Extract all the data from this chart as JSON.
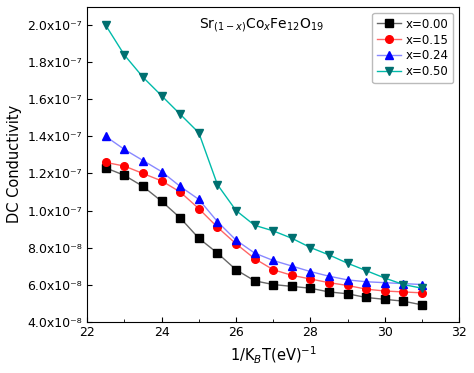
{
  "title": "Sr$_{(1-x)}$Co$_x$Fe$_{12}$O$_{19}$",
  "xlabel": "1/K$_{B}$T(eV)$^{-1}$",
  "ylabel": "DC Conductivity",
  "xlim": [
    22,
    32
  ],
  "ylim": [
    4e-08,
    2.1e-07
  ],
  "yticks": [
    4e-08,
    6e-08,
    8e-08,
    1e-07,
    1.2e-07,
    1.4e-07,
    1.6e-07,
    1.8e-07,
    2e-07
  ],
  "ytick_labels": [
    "4.0x10⁻⁸",
    "6.0x10⁻⁸",
    "8.0x10⁻⁸",
    "1.0x10⁻⁷",
    "1.2x10⁻⁷",
    "1.4x10⁻⁷",
    "1.6x10⁻⁷",
    "1.8x10⁻⁷",
    "2.0x10⁻⁷"
  ],
  "xticks": [
    22,
    24,
    26,
    28,
    30,
    32
  ],
  "series": [
    {
      "label": "x=0.00",
      "marker_color": "#000000",
      "line_color": "#666666",
      "marker": "s",
      "x": [
        22.5,
        23.0,
        23.5,
        24.0,
        24.5,
        25.0,
        25.5,
        26.0,
        26.5,
        27.0,
        27.5,
        28.0,
        28.5,
        29.0,
        29.5,
        30.0,
        30.5,
        31.0
      ],
      "y": [
        1.23e-07,
        1.19e-07,
        1.13e-07,
        1.05e-07,
        9.6e-08,
        8.5e-08,
        7.7e-08,
        6.8e-08,
        6.2e-08,
        6e-08,
        5.9e-08,
        5.8e-08,
        5.6e-08,
        5.5e-08,
        5.3e-08,
        5.2e-08,
        5.1e-08,
        4.9e-08
      ]
    },
    {
      "label": "x=0.15",
      "marker_color": "#ff0000",
      "line_color": "#ff6666",
      "marker": "o",
      "x": [
        22.5,
        23.0,
        23.5,
        24.0,
        24.5,
        25.0,
        25.5,
        26.0,
        26.5,
        27.0,
        27.5,
        28.0,
        28.5,
        29.0,
        29.5,
        30.0,
        30.5,
        31.0
      ],
      "y": [
        1.26e-07,
        1.24e-07,
        1.2e-07,
        1.16e-07,
        1.1e-07,
        1.01e-07,
        9.1e-08,
        8.2e-08,
        7.4e-08,
        6.8e-08,
        6.5e-08,
        6.3e-08,
        6.1e-08,
        5.95e-08,
        5.75e-08,
        5.65e-08,
        5.6e-08,
        5.55e-08
      ]
    },
    {
      "label": "x=0.24",
      "marker_color": "#0000ff",
      "line_color": "#8888ff",
      "marker": "^",
      "x": [
        22.5,
        23.0,
        23.5,
        24.0,
        24.5,
        25.0,
        25.5,
        26.0,
        26.5,
        27.0,
        27.5,
        28.0,
        28.5,
        29.0,
        29.5,
        30.0,
        30.5,
        31.0
      ],
      "y": [
        1.4e-07,
        1.33e-07,
        1.27e-07,
        1.21e-07,
        1.13e-07,
        1.06e-07,
        9.4e-08,
        8.4e-08,
        7.7e-08,
        7.3e-08,
        7e-08,
        6.7e-08,
        6.45e-08,
        6.25e-08,
        6.15e-08,
        6.1e-08,
        6.05e-08,
        6e-08
      ]
    },
    {
      "label": "x=0.50",
      "marker_color": "#007070",
      "line_color": "#00bbaa",
      "marker": "v",
      "x": [
        22.5,
        23.0,
        23.5,
        24.0,
        24.5,
        25.0,
        25.5,
        26.0,
        26.5,
        27.0,
        27.5,
        28.0,
        28.5,
        29.0,
        29.5,
        30.0,
        30.5,
        31.0
      ],
      "y": [
        2e-07,
        1.84e-07,
        1.72e-07,
        1.62e-07,
        1.52e-07,
        1.42e-07,
        1.14e-07,
        1e-07,
        9.2e-08,
        8.9e-08,
        8.5e-08,
        8e-08,
        7.6e-08,
        7.15e-08,
        6.75e-08,
        6.35e-08,
        6e-08,
        5.8e-08
      ]
    }
  ]
}
